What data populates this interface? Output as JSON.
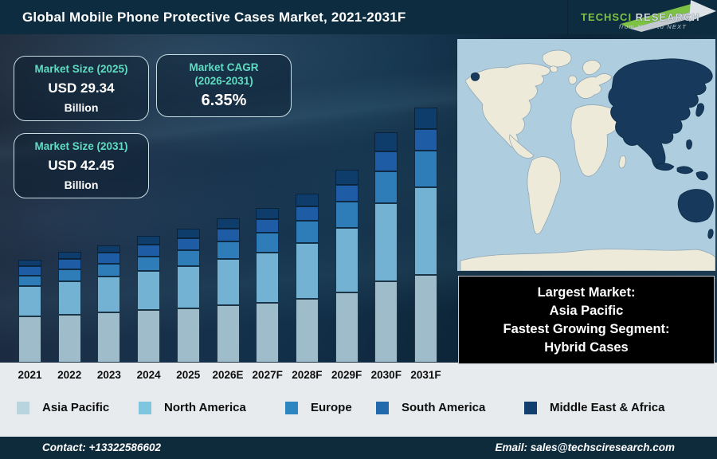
{
  "header": {
    "title": "Global Mobile Phone Protective Cases Market, 2021-2031F",
    "logo": {
      "brand": "TechSci ",
      "brand2": "Research",
      "tagline": "from NOW to NEXT"
    }
  },
  "info_boxes": {
    "market_size_2025": {
      "heading": "Market Size (2025)",
      "value": "USD 29.34",
      "unit": "Billion"
    },
    "market_cagr": {
      "heading": "Market CAGR",
      "heading_line2": "(2026-2031)",
      "value": "6.35%"
    },
    "market_size_2031": {
      "heading": "Market Size (2031)",
      "value": "USD 42.45",
      "unit": "Billion"
    }
  },
  "chart_data": {
    "type": "bar",
    "stacked": true,
    "title": "Global Mobile Phone Protective Cases Market, 2021-2031F",
    "categories": [
      "2021",
      "2022",
      "2023",
      "2024",
      "2025",
      "2026E",
      "2027F",
      "2028F",
      "2029F",
      "2030F",
      "2031F"
    ],
    "series": [
      {
        "name": "Asia Pacific",
        "color": "#9fbcca",
        "values": [
          58,
          60,
          63,
          66,
          68,
          72,
          75,
          80,
          88,
          102,
          110
        ]
      },
      {
        "name": "North America",
        "color": "#74b2d4",
        "values": [
          38,
          42,
          45,
          49,
          53,
          58,
          63,
          70,
          81,
          98,
          110
        ]
      },
      {
        "name": "Europe",
        "color": "#2e7cb8",
        "values": [
          13,
          15,
          16,
          18,
          20,
          22,
          25,
          28,
          33,
          40,
          46
        ]
      },
      {
        "name": "South America",
        "color": "#1e5ca6",
        "values": [
          12,
          13,
          14,
          15,
          15,
          16,
          17,
          18,
          21,
          25,
          27
        ]
      },
      {
        "name": "Middle East & Africa",
        "color": "#0f3d6b",
        "values": [
          8,
          9,
          9,
          11,
          12,
          13,
          14,
          16,
          19,
          24,
          27
        ]
      }
    ],
    "value_unit": "relative stacked height (chart shows no y-axis); labeled anchors: 2025 total = USD 29.34 Billion, 2031 total = USD 42.45 Billion",
    "xlabel": "",
    "ylabel": "",
    "grid": false,
    "legend_position": "bottom",
    "annotations": {
      "market_size_2025_usd_billion": 29.34,
      "market_size_2031_usd_billion": 42.45,
      "cagr_2026_2031_percent": 6.35
    }
  },
  "map": {
    "ocean_color": "#aecddf",
    "land_color": "#eeeada",
    "highlight_color": "#16395c",
    "highlighted_region": "Asia Pacific"
  },
  "callout": {
    "lines": [
      "Largest Market:",
      "Asia Pacific",
      "Fastest Growing Segment:",
      "Hybrid Cases"
    ]
  },
  "legend": {
    "items": [
      {
        "label": "Asia Pacific",
        "color": "#b8d4de"
      },
      {
        "label": "North America",
        "color": "#7ec6e0"
      },
      {
        "label": "Europe",
        "color": "#2e86c1"
      },
      {
        "label": "South America",
        "color": "#2268ad"
      },
      {
        "label": "Middle East & Africa",
        "color": "#11406e"
      }
    ]
  },
  "footer": {
    "contact": "Contact: +13322586602",
    "email": "Email: sales@techsciresearch.com"
  }
}
